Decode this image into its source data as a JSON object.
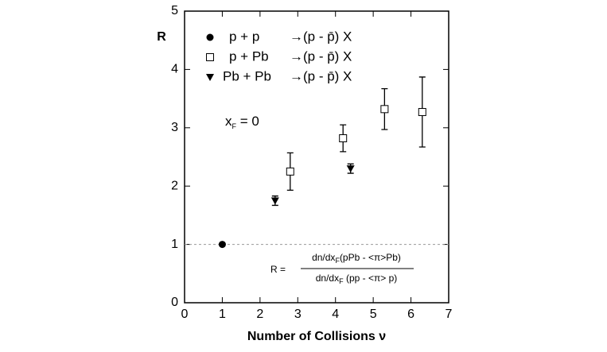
{
  "chart_data": {
    "type": "scatter",
    "x_label": "Number of Collisions ν",
    "y_label": "R",
    "xlim": [
      0,
      7
    ],
    "xticks": [
      0,
      1,
      2,
      3,
      4,
      5,
      6,
      7
    ],
    "ylim": [
      0,
      5
    ],
    "yticks": [
      0,
      1,
      2,
      3,
      4,
      5
    ],
    "reference_line": 1,
    "annotation": [
      "x",
      "F",
      " = 0"
    ],
    "formula": {
      "lhs": "R =",
      "numerator": [
        "dn/dx",
        "F",
        "(pPb - <π>Pb)"
      ],
      "denominator": [
        "dn/dx",
        "F",
        " (pp  - <π> p)"
      ]
    },
    "series": [
      {
        "name": "p + p",
        "reaction": "→(p - p̄) X",
        "marker": "circle",
        "color": "#000000",
        "x": [
          1
        ],
        "values": [
          1
        ],
        "errors": [
          0
        ]
      },
      {
        "name": "p + Pb",
        "reaction": "→(p - p̄) X",
        "marker": "open-square",
        "color": "#000000",
        "x": [
          2.8,
          4.2,
          5.3,
          6.3
        ],
        "values": [
          2.25,
          2.82,
          3.32,
          3.27
        ],
        "errors": [
          0.32,
          0.23,
          0.35,
          0.6
        ]
      },
      {
        "name": "Pb + Pb",
        "reaction": "→(p - p̄) X",
        "marker": "triangle-down",
        "color": "#000000",
        "x": [
          2.4,
          4.4
        ],
        "values": [
          1.75,
          2.3
        ],
        "errors": [
          0.08,
          0.08
        ]
      }
    ]
  }
}
